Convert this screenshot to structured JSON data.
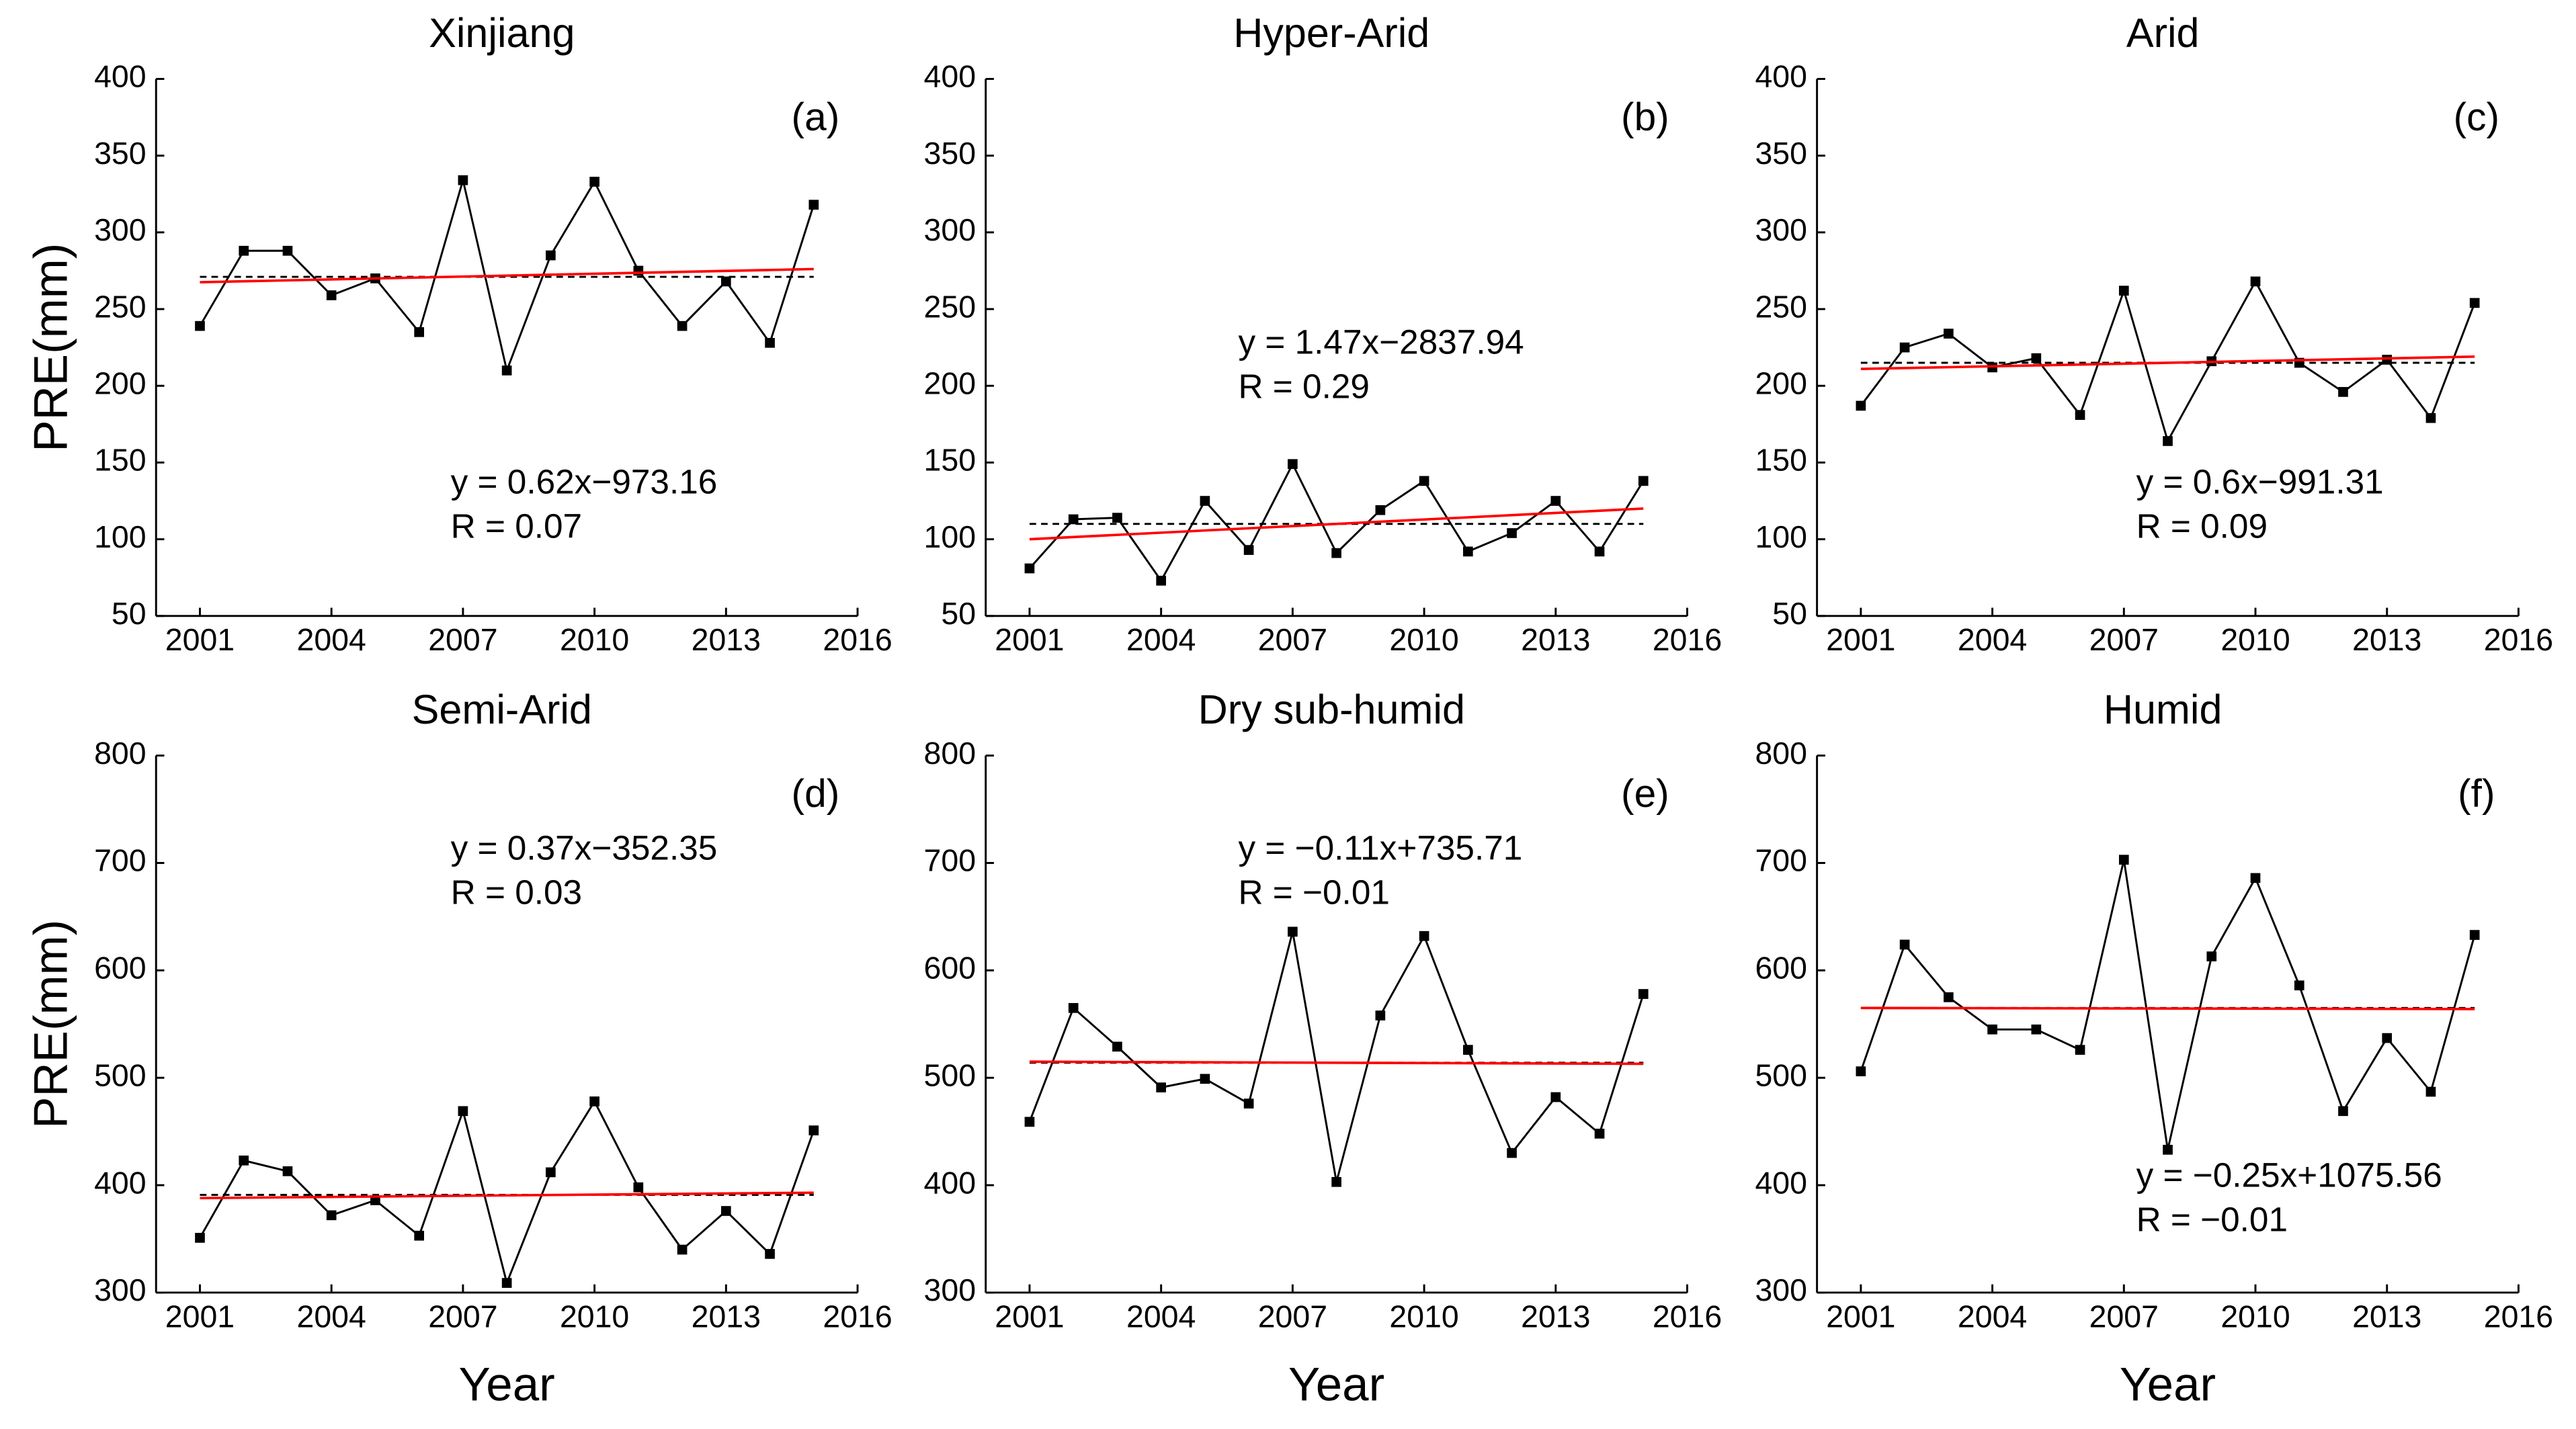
{
  "chart_data": [
    {
      "type": "line",
      "title": "Xinjiang",
      "panel_label": "(a)",
      "equation": "y = 0.62x−973.16",
      "r_text": "R = 0.07",
      "ylabel": "PRE(mm)",
      "x": [
        2001,
        2002,
        2003,
        2004,
        2005,
        2006,
        2007,
        2008,
        2009,
        2010,
        2011,
        2012,
        2013,
        2014,
        2015
      ],
      "series": [
        {
          "color": "#000000",
          "values": [
            239,
            288,
            288,
            259,
            270,
            235,
            334,
            210,
            285,
            333,
            275,
            239,
            268,
            228,
            318
          ]
        }
      ],
      "trend": {
        "color": "#ff0000",
        "x": [
          2001,
          2015
        ],
        "values": [
          267.5,
          276.1
        ]
      },
      "mean": 271,
      "xlim": [
        2000,
        2016
      ],
      "xticks": [
        2001,
        2004,
        2007,
        2010,
        2013,
        2016
      ],
      "ylim": [
        50,
        400
      ],
      "yticks": [
        50,
        100,
        150,
        200,
        250,
        300,
        350,
        400
      ]
    },
    {
      "type": "line",
      "title": "Hyper-Arid",
      "panel_label": "(b)",
      "equation": "y = 1.47x−2837.94",
      "r_text": "R = 0.29",
      "x": [
        2001,
        2002,
        2003,
        2004,
        2005,
        2006,
        2007,
        2008,
        2009,
        2010,
        2011,
        2012,
        2013,
        2014,
        2015
      ],
      "series": [
        {
          "color": "#000000",
          "values": [
            81,
            113,
            114,
            73,
            125,
            93,
            149,
            91,
            119,
            138,
            92,
            104,
            125,
            92,
            138
          ]
        }
      ],
      "trend": {
        "color": "#ff0000",
        "x": [
          2001,
          2015
        ],
        "values": [
          100,
          120
        ]
      },
      "mean": 110,
      "xlim": [
        2000,
        2016
      ],
      "xticks": [
        2001,
        2004,
        2007,
        2010,
        2013,
        2016
      ],
      "ylim": [
        50,
        400
      ],
      "yticks": [
        50,
        100,
        150,
        200,
        250,
        300,
        350,
        400
      ]
    },
    {
      "type": "line",
      "title": "Arid",
      "panel_label": "(c)",
      "equation": "y = 0.6x−991.31",
      "r_text": "R = 0.09",
      "x": [
        2001,
        2002,
        2003,
        2004,
        2005,
        2006,
        2007,
        2008,
        2009,
        2010,
        2011,
        2012,
        2013,
        2014,
        2015
      ],
      "series": [
        {
          "color": "#000000",
          "values": [
            187,
            225,
            234,
            212,
            218,
            181,
            262,
            164,
            216,
            268,
            215,
            196,
            217,
            179,
            254
          ]
        }
      ],
      "trend": {
        "color": "#ff0000",
        "x": [
          2001,
          2015
        ],
        "values": [
          211,
          219
        ]
      },
      "mean": 215,
      "xlim": [
        2000,
        2016
      ],
      "xticks": [
        2001,
        2004,
        2007,
        2010,
        2013,
        2016
      ],
      "ylim": [
        50,
        400
      ],
      "yticks": [
        50,
        100,
        150,
        200,
        250,
        300,
        350,
        400
      ]
    },
    {
      "type": "line",
      "title": "Semi-Arid",
      "panel_label": "(d)",
      "equation": "y = 0.37x−352.35",
      "r_text": "R = 0.03",
      "ylabel": "PRE(mm)",
      "xlabel": "Year",
      "x": [
        2001,
        2002,
        2003,
        2004,
        2005,
        2006,
        2007,
        2008,
        2009,
        2010,
        2011,
        2012,
        2013,
        2014,
        2015
      ],
      "series": [
        {
          "color": "#000000",
          "values": [
            351,
            423,
            413,
            372,
            386,
            353,
            469,
            309,
            412,
            478,
            398,
            340,
            376,
            336,
            451
          ]
        }
      ],
      "trend": {
        "color": "#ff0000",
        "x": [
          2001,
          2015
        ],
        "values": [
          388,
          393
        ]
      },
      "mean": 391,
      "xlim": [
        2000,
        2016
      ],
      "xticks": [
        2001,
        2004,
        2007,
        2010,
        2013,
        2016
      ],
      "ylim": [
        300,
        800
      ],
      "yticks": [
        300,
        400,
        500,
        600,
        700,
        800
      ]
    },
    {
      "type": "line",
      "title": "Dry sub-humid",
      "panel_label": "(e)",
      "equation": "y = −0.11x+735.71",
      "r_text": "R = −0.01",
      "xlabel": "Year",
      "x": [
        2001,
        2002,
        2003,
        2004,
        2005,
        2006,
        2007,
        2008,
        2009,
        2010,
        2011,
        2012,
        2013,
        2014,
        2015
      ],
      "series": [
        {
          "color": "#000000",
          "values": [
            459,
            565,
            529,
            491,
            499,
            476,
            636,
            403,
            558,
            632,
            526,
            430,
            482,
            448,
            578
          ]
        }
      ],
      "trend": {
        "color": "#ff0000",
        "x": [
          2001,
          2015
        ],
        "values": [
          515,
          513
        ]
      },
      "mean": 514,
      "xlim": [
        2000,
        2016
      ],
      "xticks": [
        2001,
        2004,
        2007,
        2010,
        2013,
        2016
      ],
      "ylim": [
        300,
        800
      ],
      "yticks": [
        300,
        400,
        500,
        600,
        700,
        800
      ]
    },
    {
      "type": "line",
      "title": "Humid",
      "panel_label": "(f)",
      "equation": "y = −0.25x+1075.56",
      "r_text": "R = −0.01",
      "xlabel": "Year",
      "x": [
        2001,
        2002,
        2003,
        2004,
        2005,
        2006,
        2007,
        2008,
        2009,
        2010,
        2011,
        2012,
        2013,
        2014,
        2015
      ],
      "series": [
        {
          "color": "#000000",
          "values": [
            506,
            624,
            575,
            545,
            545,
            526,
            703,
            433,
            613,
            686,
            586,
            469,
            537,
            487,
            633
          ]
        }
      ],
      "trend": {
        "color": "#ff0000",
        "x": [
          2001,
          2015
        ],
        "values": [
          565,
          564
        ]
      },
      "mean": 565,
      "xlim": [
        2000,
        2016
      ],
      "xticks": [
        2001,
        2004,
        2007,
        2010,
        2013,
        2016
      ],
      "ylim": [
        300,
        800
      ],
      "yticks": [
        300,
        400,
        500,
        600,
        700,
        800
      ]
    }
  ]
}
